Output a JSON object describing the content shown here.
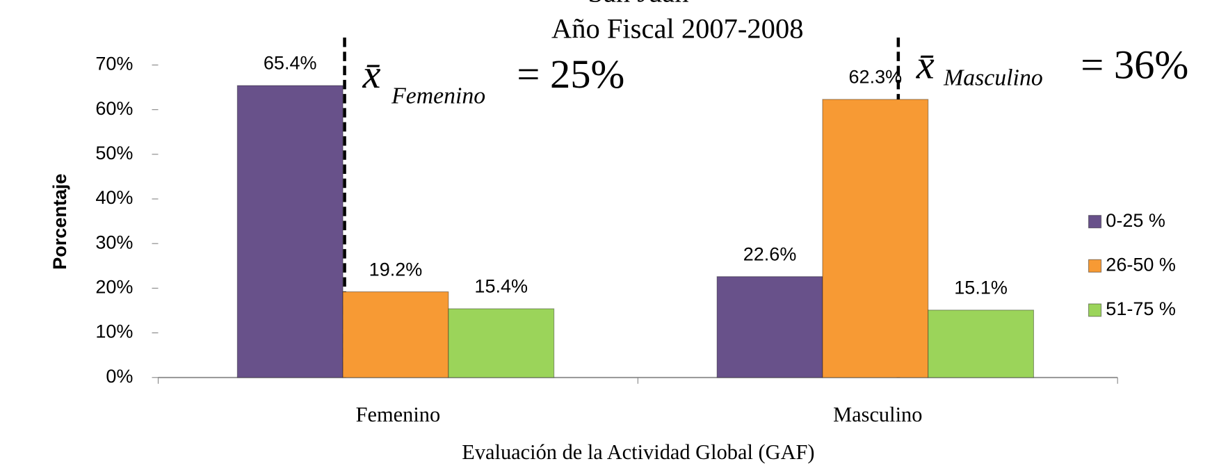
{
  "chart_data": {
    "type": "bar",
    "title": [
      "San Juan",
      "Año Fiscal 2007-2008"
    ],
    "categories": [
      "Femenino",
      "Masculino"
    ],
    "series": [
      {
        "name": "0-25 %",
        "color": "#68518a",
        "values": [
          65.4,
          22.6
        ],
        "value_labels": [
          "65.4%",
          "22.6%"
        ]
      },
      {
        "name": "26-50 %",
        "color": "#f79a34",
        "values": [
          19.2,
          62.3
        ],
        "value_labels": [
          "19.2%",
          "62.3%"
        ]
      },
      {
        "name": "51-75 %",
        "color": "#9bd45a",
        "values": [
          15.4,
          15.1
        ],
        "value_labels": [
          "15.4%",
          "15.1%"
        ]
      }
    ],
    "ylim": [
      0,
      70
    ],
    "yticks": [
      {
        "value": 0,
        "label": "0%"
      },
      {
        "value": 10,
        "label": "10%"
      },
      {
        "value": 20,
        "label": "20%"
      },
      {
        "value": 30,
        "label": "30%"
      },
      {
        "value": 40,
        "label": "40%"
      },
      {
        "value": 50,
        "label": "50%"
      },
      {
        "value": 60,
        "label": "60%"
      },
      {
        "value": 70,
        "label": "70%"
      }
    ],
    "x_label": "Evaluación de la Actividad Global (GAF)",
    "y_label": "Porcentaje",
    "legend": "right",
    "annotations": [
      {
        "symbol": "x̄",
        "subscript": "Femenino",
        "text": "= 25%"
      },
      {
        "symbol": "x̄",
        "subscript": "Masculino",
        "text": "= 36%"
      }
    ]
  }
}
